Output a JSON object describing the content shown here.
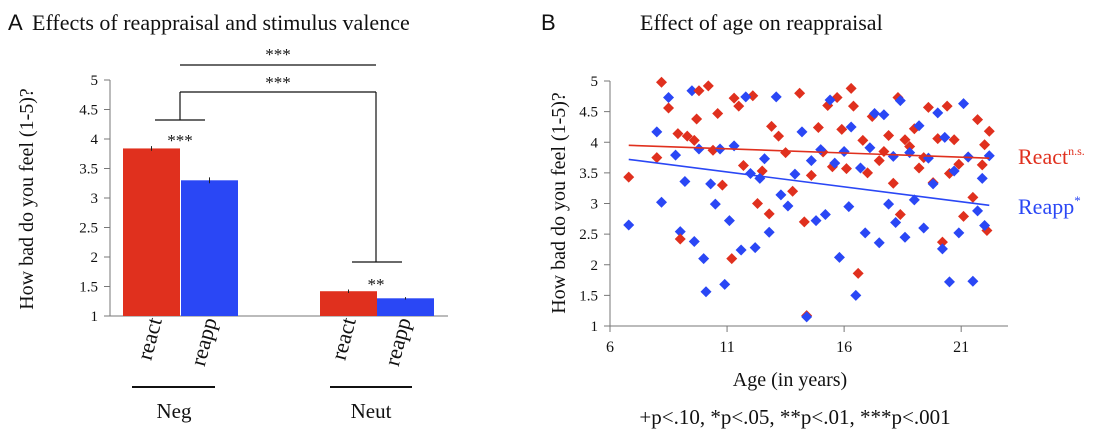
{
  "panel_a": {
    "letter": "A",
    "title": "Effects of reappraisal and stimulus valence",
    "ylabel": "How bad do you feel (1-5)?",
    "yticks": [
      "1",
      "1.5",
      "2",
      "2.5",
      "3",
      "3.5",
      "4",
      "4.5",
      "5"
    ],
    "bar_labels": [
      "react",
      "reapp",
      "react",
      "reapp"
    ],
    "groups": [
      "Neg",
      "Neut"
    ],
    "sig": {
      "top": "***",
      "middle": "***",
      "neg_bars": "***",
      "neut_bars": "**"
    }
  },
  "panel_b": {
    "letter": "B",
    "title": "Effect of age on reappraisal",
    "ylabel": "How bad do you feel (1-5)?",
    "xlabel": "Age (in years)",
    "xticks": [
      "6",
      "11",
      "16",
      "21"
    ],
    "yticks": [
      "1",
      "1.5",
      "2",
      "2.5",
      "3",
      "3.5",
      "4",
      "4.5",
      "5"
    ],
    "react_label": "React",
    "react_sup": "n.s.",
    "reapp_label": "Reapp",
    "reapp_sup": "*"
  },
  "footnote": "+p<.10, *p<.05, **p<.01, ***p<.001",
  "colors": {
    "react": "#e0301e",
    "reapp": "#2a47f5",
    "axis": "#777777"
  },
  "chart_data": [
    {
      "type": "bar",
      "categories": [
        "Neg react",
        "Neg reapp",
        "Neut react",
        "Neut reapp"
      ],
      "values": [
        3.84,
        3.3,
        1.42,
        1.3
      ],
      "errors": [
        0.04,
        0.05,
        0.03,
        0.02
      ],
      "ylim": [
        1,
        5
      ],
      "title": "Effects of reappraisal and stimulus valence",
      "ylabel": "How bad do you feel (1-5)?",
      "grid": false
    },
    {
      "type": "scatter",
      "title": "Effect of age on reappraisal",
      "xlabel": "Age (in years)",
      "ylabel": "How bad do you feel (1-5)?",
      "xlim": [
        6,
        23
      ],
      "ylim": [
        1,
        5
      ],
      "grid": false,
      "series": [
        {
          "name": "React",
          "trend": [
            [
              6.8,
              3.95
            ],
            [
              22.2,
              3.74
            ]
          ],
          "points": [
            [
              6.8,
              3.43
            ],
            [
              8.0,
              3.75
            ],
            [
              8.2,
              4.98
            ],
            [
              8.5,
              4.56
            ],
            [
              8.9,
              4.14
            ],
            [
              9.0,
              2.42
            ],
            [
              9.3,
              4.1
            ],
            [
              9.6,
              4.03
            ],
            [
              9.7,
              4.38
            ],
            [
              9.8,
              4.84
            ],
            [
              10.2,
              4.92
            ],
            [
              10.4,
              3.87
            ],
            [
              10.6,
              4.47
            ],
            [
              10.8,
              3.3
            ],
            [
              11.2,
              2.1
            ],
            [
              11.3,
              4.72
            ],
            [
              11.5,
              4.59
            ],
            [
              11.7,
              3.62
            ],
            [
              12.1,
              4.76
            ],
            [
              12.3,
              3.0
            ],
            [
              12.5,
              3.53
            ],
            [
              12.8,
              2.83
            ],
            [
              12.9,
              4.26
            ],
            [
              13.2,
              4.1
            ],
            [
              13.5,
              3.83
            ],
            [
              13.8,
              3.2
            ],
            [
              14.1,
              4.8
            ],
            [
              14.3,
              2.7
            ],
            [
              14.4,
              1.17
            ],
            [
              14.6,
              3.46
            ],
            [
              14.9,
              4.24
            ],
            [
              15.1,
              3.84
            ],
            [
              15.3,
              4.6
            ],
            [
              15.5,
              3.6
            ],
            [
              15.7,
              4.73
            ],
            [
              15.9,
              4.21
            ],
            [
              16.1,
              3.57
            ],
            [
              16.3,
              4.88
            ],
            [
              16.4,
              4.59
            ],
            [
              16.6,
              1.86
            ],
            [
              16.8,
              4.03
            ],
            [
              17.0,
              3.5
            ],
            [
              17.2,
              4.42
            ],
            [
              17.5,
              3.7
            ],
            [
              17.7,
              3.85
            ],
            [
              17.9,
              4.11
            ],
            [
              18.1,
              3.33
            ],
            [
              18.3,
              4.73
            ],
            [
              18.4,
              2.82
            ],
            [
              18.6,
              4.04
            ],
            [
              18.8,
              3.93
            ],
            [
              19.0,
              4.22
            ],
            [
              19.2,
              3.58
            ],
            [
              19.4,
              3.75
            ],
            [
              19.6,
              4.57
            ],
            [
              19.8,
              3.34
            ],
            [
              20.0,
              4.06
            ],
            [
              20.2,
              2.37
            ],
            [
              20.4,
              4.59
            ],
            [
              20.5,
              3.49
            ],
            [
              20.7,
              4.04
            ],
            [
              20.9,
              3.64
            ],
            [
              21.1,
              2.79
            ],
            [
              21.3,
              3.76
            ],
            [
              21.5,
              3.1
            ],
            [
              21.7,
              4.37
            ],
            [
              21.9,
              3.63
            ],
            [
              22.0,
              3.96
            ],
            [
              22.1,
              2.56
            ],
            [
              22.2,
              4.18
            ]
          ]
        },
        {
          "name": "Reapp",
          "trend": [
            [
              6.8,
              3.72
            ],
            [
              22.2,
              2.97
            ]
          ],
          "points": [
            [
              6.8,
              2.65
            ],
            [
              8.0,
              4.17
            ],
            [
              8.2,
              3.02
            ],
            [
              8.5,
              4.73
            ],
            [
              8.8,
              3.79
            ],
            [
              9.0,
              2.54
            ],
            [
              9.2,
              3.36
            ],
            [
              9.5,
              4.84
            ],
            [
              9.6,
              2.38
            ],
            [
              9.8,
              3.89
            ],
            [
              10.0,
              2.1
            ],
            [
              10.1,
              1.56
            ],
            [
              10.3,
              3.32
            ],
            [
              10.5,
              2.99
            ],
            [
              10.7,
              3.89
            ],
            [
              10.9,
              1.68
            ],
            [
              11.1,
              2.72
            ],
            [
              11.3,
              3.94
            ],
            [
              11.6,
              2.24
            ],
            [
              11.8,
              4.74
            ],
            [
              12.0,
              3.49
            ],
            [
              12.2,
              2.28
            ],
            [
              12.4,
              3.41
            ],
            [
              12.6,
              3.73
            ],
            [
              12.8,
              2.53
            ],
            [
              13.1,
              4.74
            ],
            [
              13.3,
              3.14
            ],
            [
              13.6,
              2.96
            ],
            [
              13.9,
              3.48
            ],
            [
              14.2,
              4.17
            ],
            [
              14.4,
              1.15
            ],
            [
              14.6,
              3.7
            ],
            [
              14.8,
              2.72
            ],
            [
              15.0,
              3.88
            ],
            [
              15.2,
              2.82
            ],
            [
              15.4,
              4.69
            ],
            [
              15.6,
              3.66
            ],
            [
              15.8,
              2.12
            ],
            [
              16.0,
              3.85
            ],
            [
              16.2,
              2.95
            ],
            [
              16.3,
              4.25
            ],
            [
              16.5,
              1.5
            ],
            [
              16.7,
              3.58
            ],
            [
              16.9,
              2.52
            ],
            [
              17.1,
              3.91
            ],
            [
              17.3,
              4.47
            ],
            [
              17.5,
              2.36
            ],
            [
              17.7,
              4.45
            ],
            [
              17.9,
              2.99
            ],
            [
              18.1,
              3.77
            ],
            [
              18.2,
              2.69
            ],
            [
              18.4,
              4.68
            ],
            [
              18.6,
              2.45
            ],
            [
              18.8,
              3.83
            ],
            [
              19.0,
              3.06
            ],
            [
              19.2,
              4.27
            ],
            [
              19.4,
              2.6
            ],
            [
              19.6,
              3.74
            ],
            [
              19.8,
              3.32
            ],
            [
              20.0,
              4.48
            ],
            [
              20.2,
              2.26
            ],
            [
              20.3,
              4.08
            ],
            [
              20.5,
              1.72
            ],
            [
              20.7,
              3.53
            ],
            [
              20.9,
              2.52
            ],
            [
              21.1,
              4.63
            ],
            [
              21.3,
              3.76
            ],
            [
              21.5,
              1.73
            ],
            [
              21.7,
              2.88
            ],
            [
              21.9,
              3.41
            ],
            [
              22.0,
              2.64
            ],
            [
              22.2,
              3.78
            ]
          ]
        }
      ]
    }
  ]
}
